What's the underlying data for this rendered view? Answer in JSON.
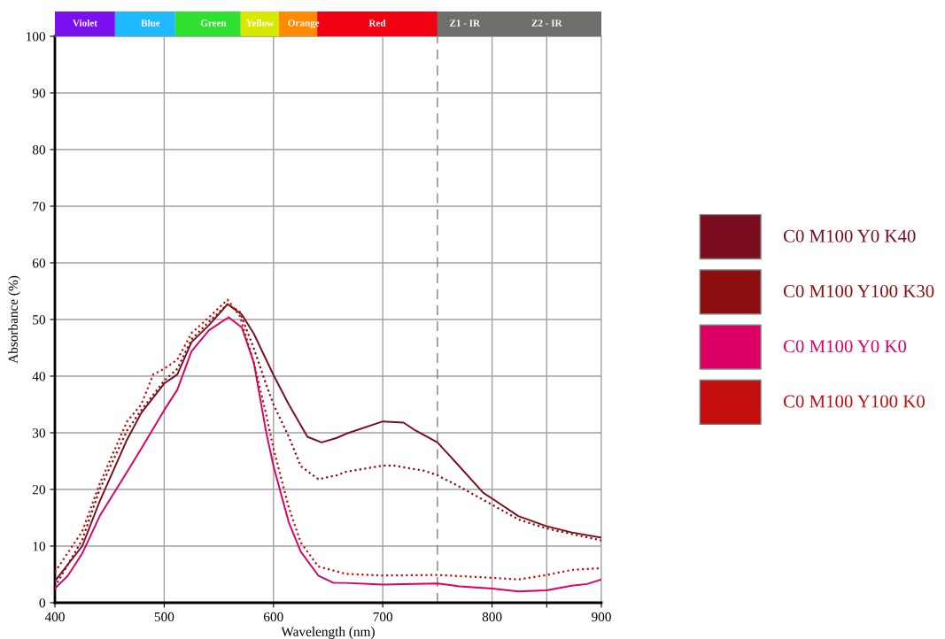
{
  "chart_data": {
    "type": "line",
    "xlabel": "Wavelength (nm)",
    "ylabel": "Absorbance (%)",
    "xlim": [
      400,
      900
    ],
    "ylim": [
      0,
      100
    ],
    "xticks": [
      400,
      500,
      600,
      700,
      800,
      {
        "value": 850,
        "label": null
      },
      900
    ],
    "yticks": [
      0,
      10,
      20,
      30,
      40,
      50,
      60,
      70,
      80,
      90,
      100
    ],
    "grid": true,
    "legend": "right",
    "marker": "none",
    "series": [
      {
        "name": "C0 M100 Y0 K40",
        "color": "#7a0e1e",
        "line_style": "solid",
        "x": [
          400,
          425,
          441,
          466,
          479,
          500,
          512,
          525,
          541,
          558,
          571,
          582,
          600,
          614,
          631,
          644,
          658,
          666,
          700,
          719,
          730,
          750,
          770,
          792,
          800,
          824,
          850,
          873,
          900
        ],
        "values": [
          3.8,
          10,
          17.9,
          28.8,
          33.5,
          38.7,
          40.3,
          46,
          49,
          52.7,
          50.9,
          47.5,
          40.2,
          35,
          29.3,
          28.3,
          29.1,
          29.8,
          32,
          31.8,
          30.4,
          28.3,
          24.1,
          19.4,
          18.4,
          15.3,
          13.5,
          12.4,
          11.5
        ]
      },
      {
        "name": "C0 M100 Y100 K30",
        "color": "#8c0e0e",
        "line_style": "dotted",
        "x": [
          400,
          425,
          441,
          466,
          479,
          500,
          512,
          525,
          541,
          558,
          569,
          582,
          593,
          600,
          614,
          625,
          641,
          658,
          666,
          700,
          710,
          738,
          750,
          770,
          800,
          824,
          850,
          900
        ],
        "values": [
          2.8,
          11.1,
          20,
          30.4,
          34,
          39.2,
          41.3,
          46.5,
          49.6,
          52.7,
          51.4,
          44.9,
          38.7,
          35,
          29.3,
          24.1,
          21.8,
          22.5,
          23.1,
          24.2,
          24.2,
          23.3,
          22.5,
          20.5,
          17.3,
          14.7,
          13.1,
          11
        ]
      },
      {
        "name": "C0 M100 Y0 K0",
        "color": "#dc0064",
        "line_style": "solid",
        "x": [
          400,
          412,
          425,
          441,
          466,
          479,
          500,
          512,
          525,
          541,
          559,
          571,
          582,
          593,
          600,
          614,
          625,
          641,
          655,
          666,
          700,
          750,
          770,
          800,
          824,
          850,
          873,
          887,
          900
        ],
        "values": [
          2.5,
          4.8,
          8.7,
          15.3,
          23.1,
          27.2,
          34,
          37.6,
          44.4,
          48.1,
          50.4,
          48.6,
          42.4,
          30.4,
          24.1,
          14.2,
          9,
          4.8,
          3.5,
          3.5,
          3.2,
          3.4,
          2.9,
          2.5,
          2,
          2.2,
          3,
          3.3,
          4.1
        ]
      },
      {
        "name": "C0 M100 Y100 K0",
        "color": "#c40e0e",
        "line_style": "dotted",
        "x": [
          400,
          425,
          441,
          466,
          479,
          490,
          500,
          512,
          525,
          541,
          558,
          569,
          582,
          593,
          600,
          614,
          625,
          641,
          666,
          700,
          750,
          800,
          824,
          850,
          873,
          900
        ],
        "values": [
          5.4,
          12.6,
          21,
          32,
          35,
          40.3,
          41.3,
          42.9,
          47.6,
          50.4,
          53.5,
          50.7,
          42.4,
          33.5,
          27.2,
          16.8,
          10.6,
          6.4,
          5.1,
          4.8,
          4.9,
          4.4,
          4.1,
          4.9,
          5.8,
          6.1
        ]
      }
    ],
    "ref_lines": [
      {
        "axis": "x",
        "value": 750,
        "color": "#808080",
        "line_style": "dashed"
      }
    ],
    "annotations": [
      "Violet",
      "Blue",
      "Green",
      "Yellow",
      "Orange",
      "Red",
      "Z1 - IR",
      "Z2 - IR"
    ]
  }
}
